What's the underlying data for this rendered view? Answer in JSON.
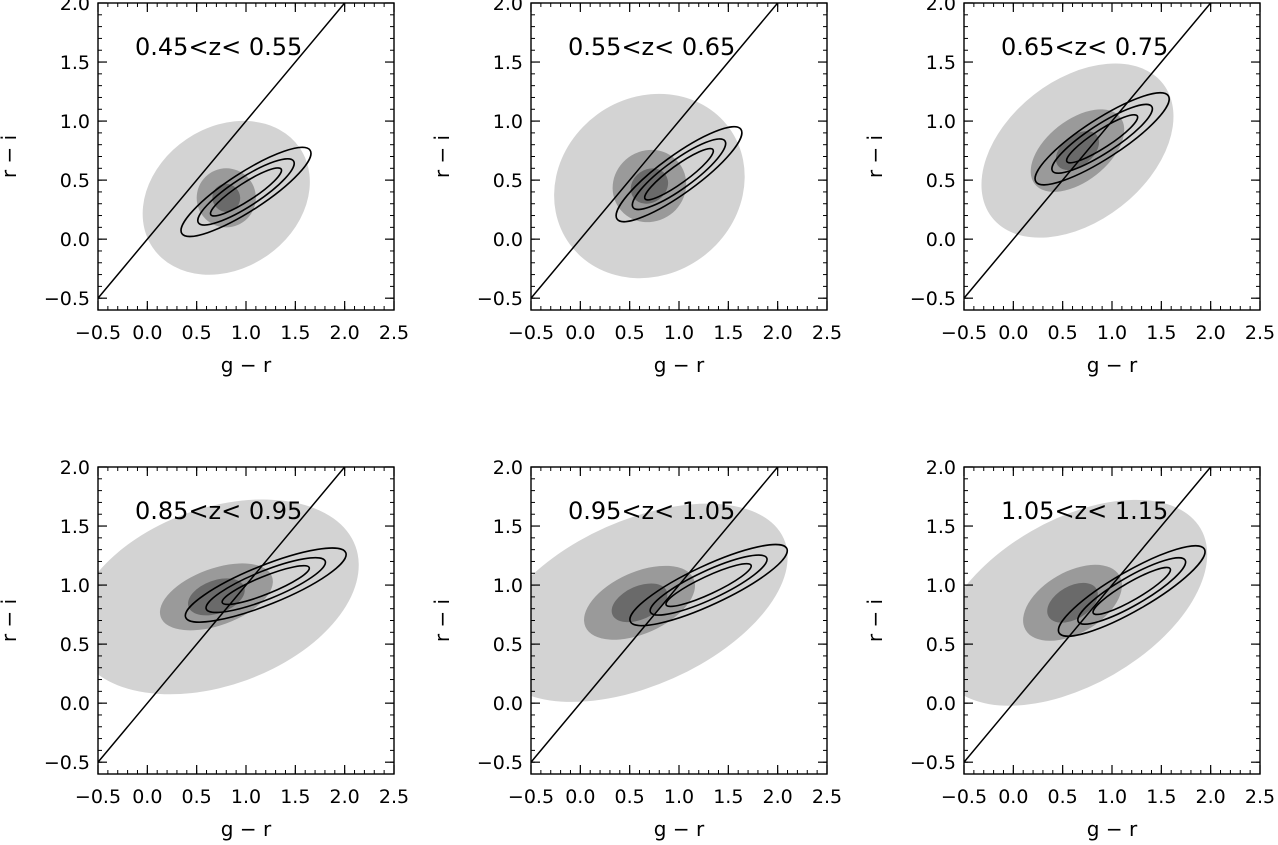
{
  "figure": {
    "xlabel": "g − r",
    "ylabel": "r − i",
    "xlim": [
      -0.5,
      2.5
    ],
    "ylim": [
      -0.6,
      2.0
    ],
    "xticks": [
      -0.5,
      0.0,
      0.5,
      1.0,
      1.5,
      2.0,
      2.5
    ],
    "xtick_labels": [
      "−0.5",
      "0.0",
      "0.5",
      "1.0",
      "1.5",
      "2.0",
      "2.5"
    ],
    "yticks": [
      -0.5,
      0.0,
      0.5,
      1.0,
      1.5,
      2.0
    ],
    "ytick_labels": [
      "−0.5",
      "0.0",
      "0.5",
      "1.0",
      "1.5",
      "2.0"
    ],
    "colors": {
      "fill_light": "#d3d3d3",
      "fill_mid": "#9a9a9a",
      "fill_dark": "#6a6a6a",
      "line": "#000000"
    }
  },
  "chart_data": [
    {
      "type": "contour",
      "title": "0.45<z< 0.55",
      "xlabel": "g − r",
      "ylabel": "r − i",
      "xlim": [
        -0.5,
        2.5
      ],
      "ylim": [
        -0.6,
        2.0
      ],
      "diagonal_line": {
        "slope": 1.0,
        "intercept": 0.0
      },
      "filled_density": {
        "center": [
          0.8,
          0.35
        ],
        "light": [
          0.9,
          0.6
        ],
        "mid": [
          0.3,
          0.25
        ],
        "dark": [
          0.14,
          0.12
        ],
        "angle_deg": 34
      },
      "line_contours": {
        "center": [
          1.0,
          0.4
        ],
        "radii_major": [
          1.55,
          1.15,
          0.85
        ],
        "radii_minor": [
          0.32,
          0.24,
          0.15
        ],
        "angle_deg": 33
      }
    },
    {
      "type": "contour",
      "title": "0.55<z< 0.65",
      "xlabel": "g − r",
      "ylabel": "r − i",
      "xlim": [
        -0.5,
        2.5
      ],
      "ylim": [
        -0.6,
        2.0
      ],
      "diagonal_line": {
        "slope": 1.0,
        "intercept": 0.0
      },
      "filled_density": {
        "center": [
          0.7,
          0.45
        ],
        "light": [
          1.0,
          0.75
        ],
        "mid": [
          0.38,
          0.3
        ],
        "dark": [
          0.2,
          0.14
        ],
        "angle_deg": 36
      },
      "line_contours": {
        "center": [
          1.0,
          0.55
        ],
        "radii_major": [
          1.55,
          1.15,
          0.85
        ],
        "radii_minor": [
          0.32,
          0.24,
          0.15
        ],
        "angle_deg": 36
      }
    },
    {
      "type": "contour",
      "title": "0.65<z< 0.75",
      "xlabel": "g − r",
      "ylabel": "r − i",
      "xlim": [
        -0.5,
        2.5
      ],
      "ylim": [
        -0.6,
        2.0
      ],
      "diagonal_line": {
        "slope": 1.0,
        "intercept": 0.0
      },
      "filled_density": {
        "center": [
          0.65,
          0.75
        ],
        "light": [
          1.1,
          0.6
        ],
        "mid": [
          0.55,
          0.26
        ],
        "dark": [
          0.25,
          0.13
        ],
        "angle_deg": 38
      },
      "line_contours": {
        "center": [
          0.9,
          0.85
        ],
        "radii_major": [
          1.6,
          1.2,
          0.85
        ],
        "radii_minor": [
          0.33,
          0.24,
          0.15
        ],
        "angle_deg": 33
      }
    },
    {
      "type": "contour",
      "title": "0.85<z< 0.95",
      "xlabel": "g − r",
      "ylabel": "r − i",
      "xlim": [
        -0.5,
        2.5
      ],
      "ylim": [
        -0.6,
        2.0
      ],
      "diagonal_line": {
        "slope": 1.0,
        "intercept": 0.0
      },
      "filled_density": {
        "center": [
          0.7,
          0.9
        ],
        "light": [
          1.5,
          0.75
        ],
        "mid": [
          0.6,
          0.24
        ],
        "dark": [
          0.3,
          0.14
        ],
        "angle_deg": 20
      },
      "line_contours": {
        "center": [
          1.2,
          1.0
        ],
        "radii_major": [
          1.75,
          1.3,
          0.95
        ],
        "radii_minor": [
          0.33,
          0.24,
          0.15
        ],
        "angle_deg": 22
      }
    },
    {
      "type": "contour",
      "title": "0.95<z< 1.05",
      "xlabel": "g − r",
      "ylabel": "r − i",
      "xlim": [
        -0.5,
        2.5
      ],
      "ylim": [
        -0.6,
        2.0
      ],
      "diagonal_line": {
        "slope": 1.0,
        "intercept": 0.0
      },
      "filled_density": {
        "center": [
          0.6,
          0.85
        ],
        "light": [
          1.6,
          0.7
        ],
        "mid": [
          0.6,
          0.26
        ],
        "dark": [
          0.3,
          0.14
        ],
        "angle_deg": 24
      },
      "line_contours": {
        "center": [
          1.3,
          1.0
        ],
        "radii_major": [
          1.75,
          1.3,
          0.95
        ],
        "radii_minor": [
          0.33,
          0.24,
          0.15
        ],
        "angle_deg": 25
      }
    },
    {
      "type": "contour",
      "title": "1.05<z< 1.15",
      "xlabel": "g − r",
      "ylabel": "r − i",
      "xlim": [
        -0.5,
        2.5
      ],
      "ylim": [
        -0.6,
        2.0
      ],
      "diagonal_line": {
        "slope": 1.0,
        "intercept": 0.0
      },
      "filled_density": {
        "center": [
          0.6,
          0.85
        ],
        "light": [
          1.5,
          0.7
        ],
        "mid": [
          0.55,
          0.26
        ],
        "dark": [
          0.28,
          0.14
        ],
        "angle_deg": 30
      },
      "line_contours": {
        "center": [
          1.2,
          0.95
        ],
        "radii_major": [
          1.7,
          1.25,
          0.9
        ],
        "radii_minor": [
          0.33,
          0.24,
          0.15
        ],
        "angle_deg": 30
      }
    }
  ]
}
